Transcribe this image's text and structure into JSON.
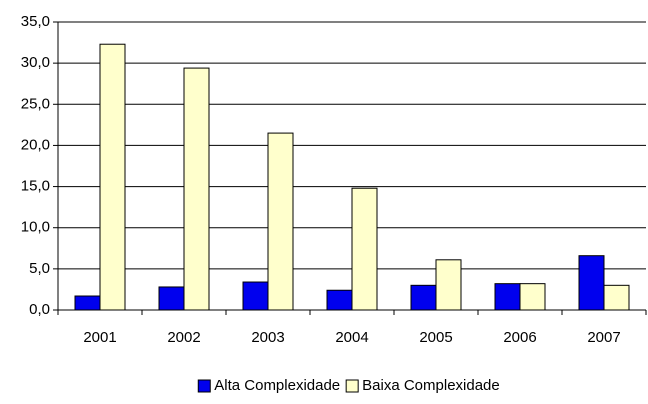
{
  "chart_data": {
    "type": "bar",
    "categories": [
      "2001",
      "2002",
      "2003",
      "2004",
      "2005",
      "2006",
      "2007"
    ],
    "series": [
      {
        "name": "Alta Complexidade",
        "color": "#0000ee",
        "values": [
          1.7,
          2.8,
          3.4,
          2.4,
          3.0,
          3.2,
          6.6
        ]
      },
      {
        "name": "Baixa Complexidade",
        "color": "#ffffcc",
        "values": [
          32.3,
          29.4,
          21.5,
          14.8,
          6.1,
          3.2,
          3.0
        ]
      }
    ],
    "ylim": [
      0,
      35
    ],
    "yticks": [
      {
        "value": 0,
        "label": "0,0"
      },
      {
        "value": 5,
        "label": "5,0"
      },
      {
        "value": 10,
        "label": "10,0"
      },
      {
        "value": 15,
        "label": "15,0"
      },
      {
        "value": 20,
        "label": "20,0"
      },
      {
        "value": 25,
        "label": "25,0"
      },
      {
        "value": 30,
        "label": "30,0"
      },
      {
        "value": 35,
        "label": "35,0"
      }
    ],
    "grid": true,
    "legend": "bottom"
  }
}
